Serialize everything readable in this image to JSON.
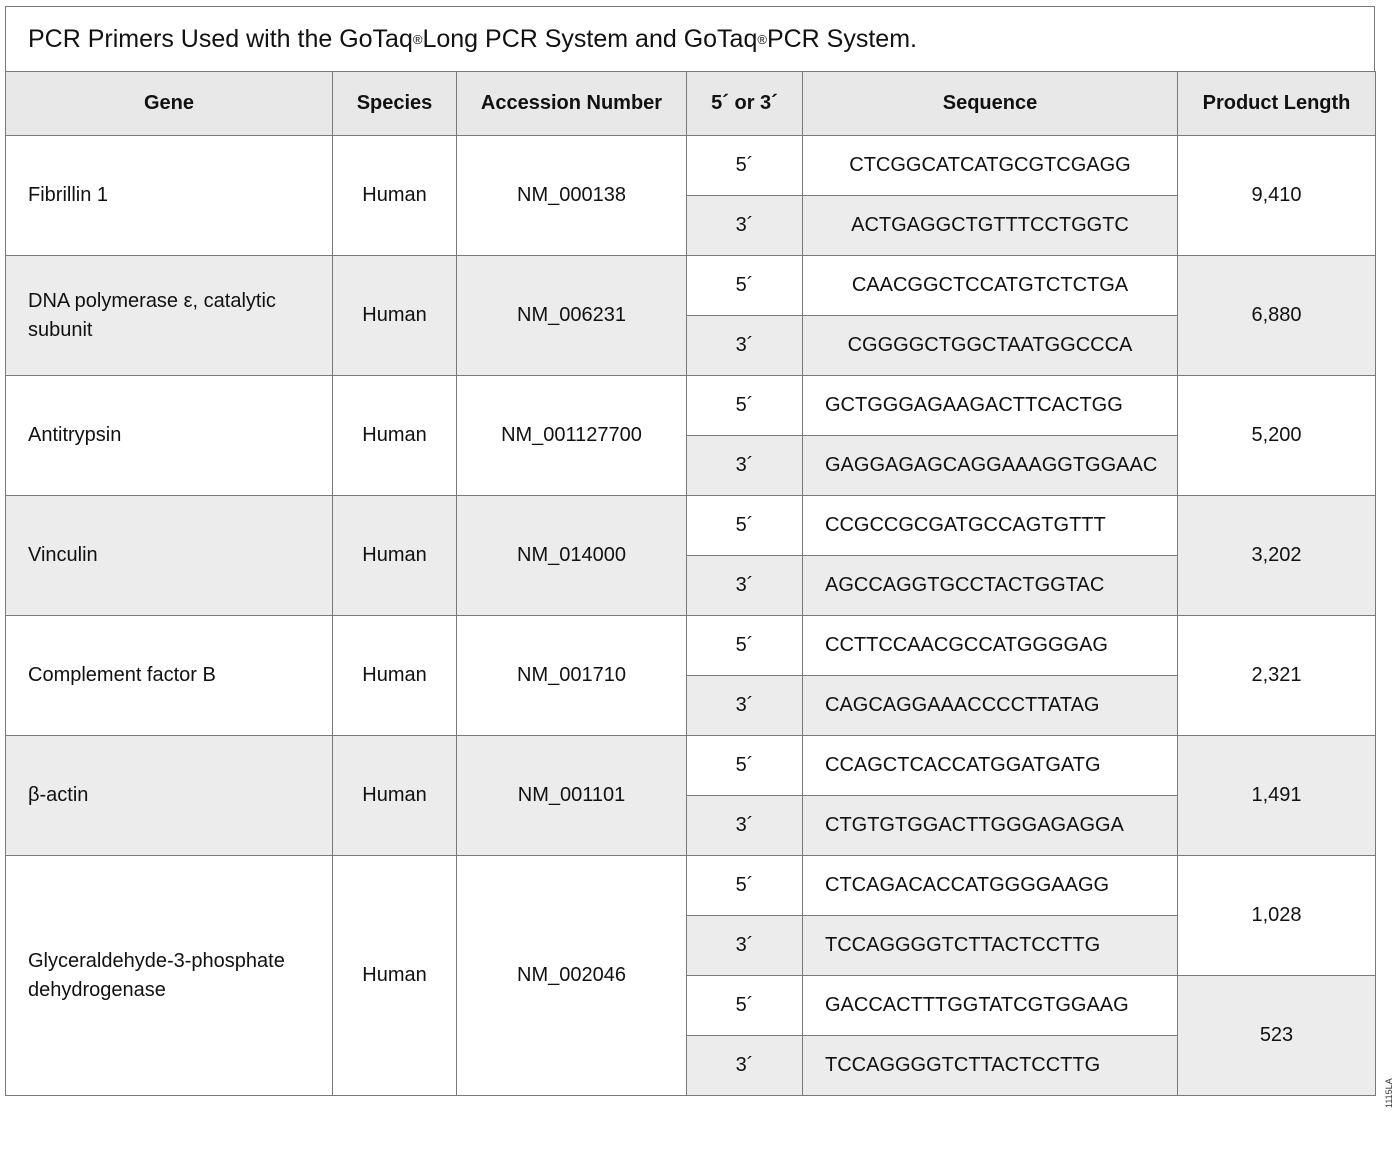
{
  "title": {
    "text_a": "PCR Primers Used with the GoTaq",
    "reg": "®",
    "text_b": " Long PCR System and GoTaq",
    "text_c": " PCR System."
  },
  "headers": [
    "Gene",
    "Species",
    "Accession Number",
    "5´ or 3´",
    "Sequence",
    "Product Length"
  ],
  "rows": [
    {
      "gene": "Fibrillin 1",
      "species": "Human",
      "accession": "NM_000138",
      "primers": [
        {
          "end": "5´",
          "seq": "CTCGGCATCATGCGTCGAGG"
        },
        {
          "end": "3´",
          "seq": "ACTGAGGCTGTTTCCTGGTC"
        }
      ],
      "products": [
        "9,410"
      ]
    },
    {
      "gene": "DNA polymerase ε, catalytic subunit",
      "species": "Human",
      "accession": "NM_006231",
      "primers": [
        {
          "end": "5´",
          "seq": "CAACGGCTCCATGTCTCTGA"
        },
        {
          "end": "3´",
          "seq": "CGGGGCTGGCTAATGGCCCA"
        }
      ],
      "products": [
        "6,880"
      ]
    },
    {
      "gene": "Antitrypsin",
      "species": "Human",
      "accession": "NM_001127700",
      "primers": [
        {
          "end": "5´",
          "seq": "GCTGGGAGAAGACTTCACTGG"
        },
        {
          "end": "3´",
          "seq": "GAGGAGAGCAGGAAAGGTGGAAC"
        }
      ],
      "products": [
        "5,200"
      ]
    },
    {
      "gene": "Vinculin",
      "species": "Human",
      "accession": "NM_014000",
      "primers": [
        {
          "end": "5´",
          "seq": "CCGCCGCGATGCCAGTGTTT"
        },
        {
          "end": "3´",
          "seq": "AGCCAGGTGCCTACTGGTAC"
        }
      ],
      "products": [
        "3,202"
      ]
    },
    {
      "gene": "Complement factor B",
      "species": "Human",
      "accession": "NM_001710",
      "primers": [
        {
          "end": "5´",
          "seq": "CCTTCCAACGCCATGGGGAG"
        },
        {
          "end": "3´",
          "seq": "CAGCAGGAAACCCCTTATAG"
        }
      ],
      "products": [
        "2,321"
      ]
    },
    {
      "gene": "β-actin",
      "species": "Human",
      "accession": "NM_001101",
      "primers": [
        {
          "end": "5´",
          "seq": "CCAGCTCACCATGGATGATG"
        },
        {
          "end": "3´",
          "seq": "CTGTGTGGACTTGGGAGAGGA"
        }
      ],
      "products": [
        "1,491"
      ]
    },
    {
      "gene": "Glyceraldehyde-3-phosphate dehydrogenase",
      "species": "Human",
      "accession": "NM_002046",
      "primers": [
        {
          "end": "5´",
          "seq": "CTCAGACACCATGGGGAAGG"
        },
        {
          "end": "3´",
          "seq": "TCCAGGGGTCTTACTCCTTG"
        },
        {
          "end": "5´",
          "seq": "GACCACTTTGGTATCGTGGAAG"
        },
        {
          "end": "3´",
          "seq": "TCCAGGGGTCTTACTCCTTG"
        }
      ],
      "products": [
        "1,028",
        "523"
      ]
    }
  ],
  "figure_code": "1115LA"
}
